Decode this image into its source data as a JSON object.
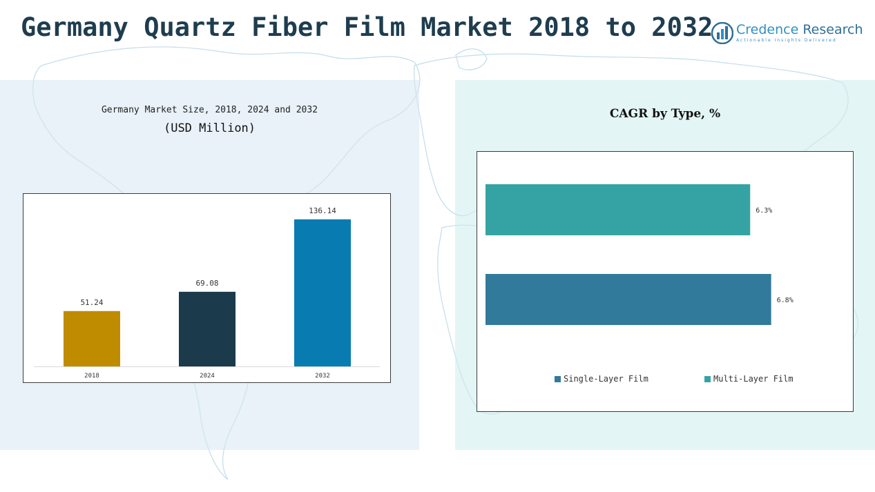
{
  "page": {
    "title": "Germany Quartz Fiber Film Market 2018 to 2032"
  },
  "logo": {
    "name_part1": "Credence",
    "name_part2": "Research",
    "tagline": "Actionable Insights Delivered"
  },
  "colors": {
    "title": "#1e3d4f",
    "bar_2018": "#bf8c00",
    "bar_2024": "#1b3a4b",
    "bar_2032": "#087cb1",
    "single_layer": "#327a9b",
    "multi_layer": "#35a3a3"
  },
  "chart_data": [
    {
      "type": "bar",
      "title": "Germany Market Size, 2018, 2024 and 2032",
      "subtitle": "(USD Million)",
      "categories": [
        "2018",
        "2024",
        "2032"
      ],
      "values": [
        51.24,
        69.08,
        136.14
      ],
      "value_labels": [
        "51.24",
        "69.08",
        "136.14"
      ],
      "colors": [
        "#bf8c00",
        "#1b3a4b",
        "#087cb1"
      ],
      "ylim": [
        0,
        150
      ],
      "grid": false,
      "legend": "none"
    },
    {
      "type": "bar",
      "orientation": "horizontal",
      "title": "CAGR by Type, %",
      "categories": [
        "Multi-Layer Film",
        "Single-Layer Film"
      ],
      "values": [
        6.3,
        6.8
      ],
      "value_labels": [
        "6.3%",
        "6.8%"
      ],
      "colors": [
        "#35a3a3",
        "#327a9b"
      ],
      "xlim": [
        0,
        8.3
      ],
      "grid": false,
      "legend": "bottom",
      "legend_entries": [
        {
          "label": "Single-Layer Film",
          "color": "#327a9b"
        },
        {
          "label": "Multi-Layer Film",
          "color": "#35a3a3"
        }
      ]
    }
  ]
}
